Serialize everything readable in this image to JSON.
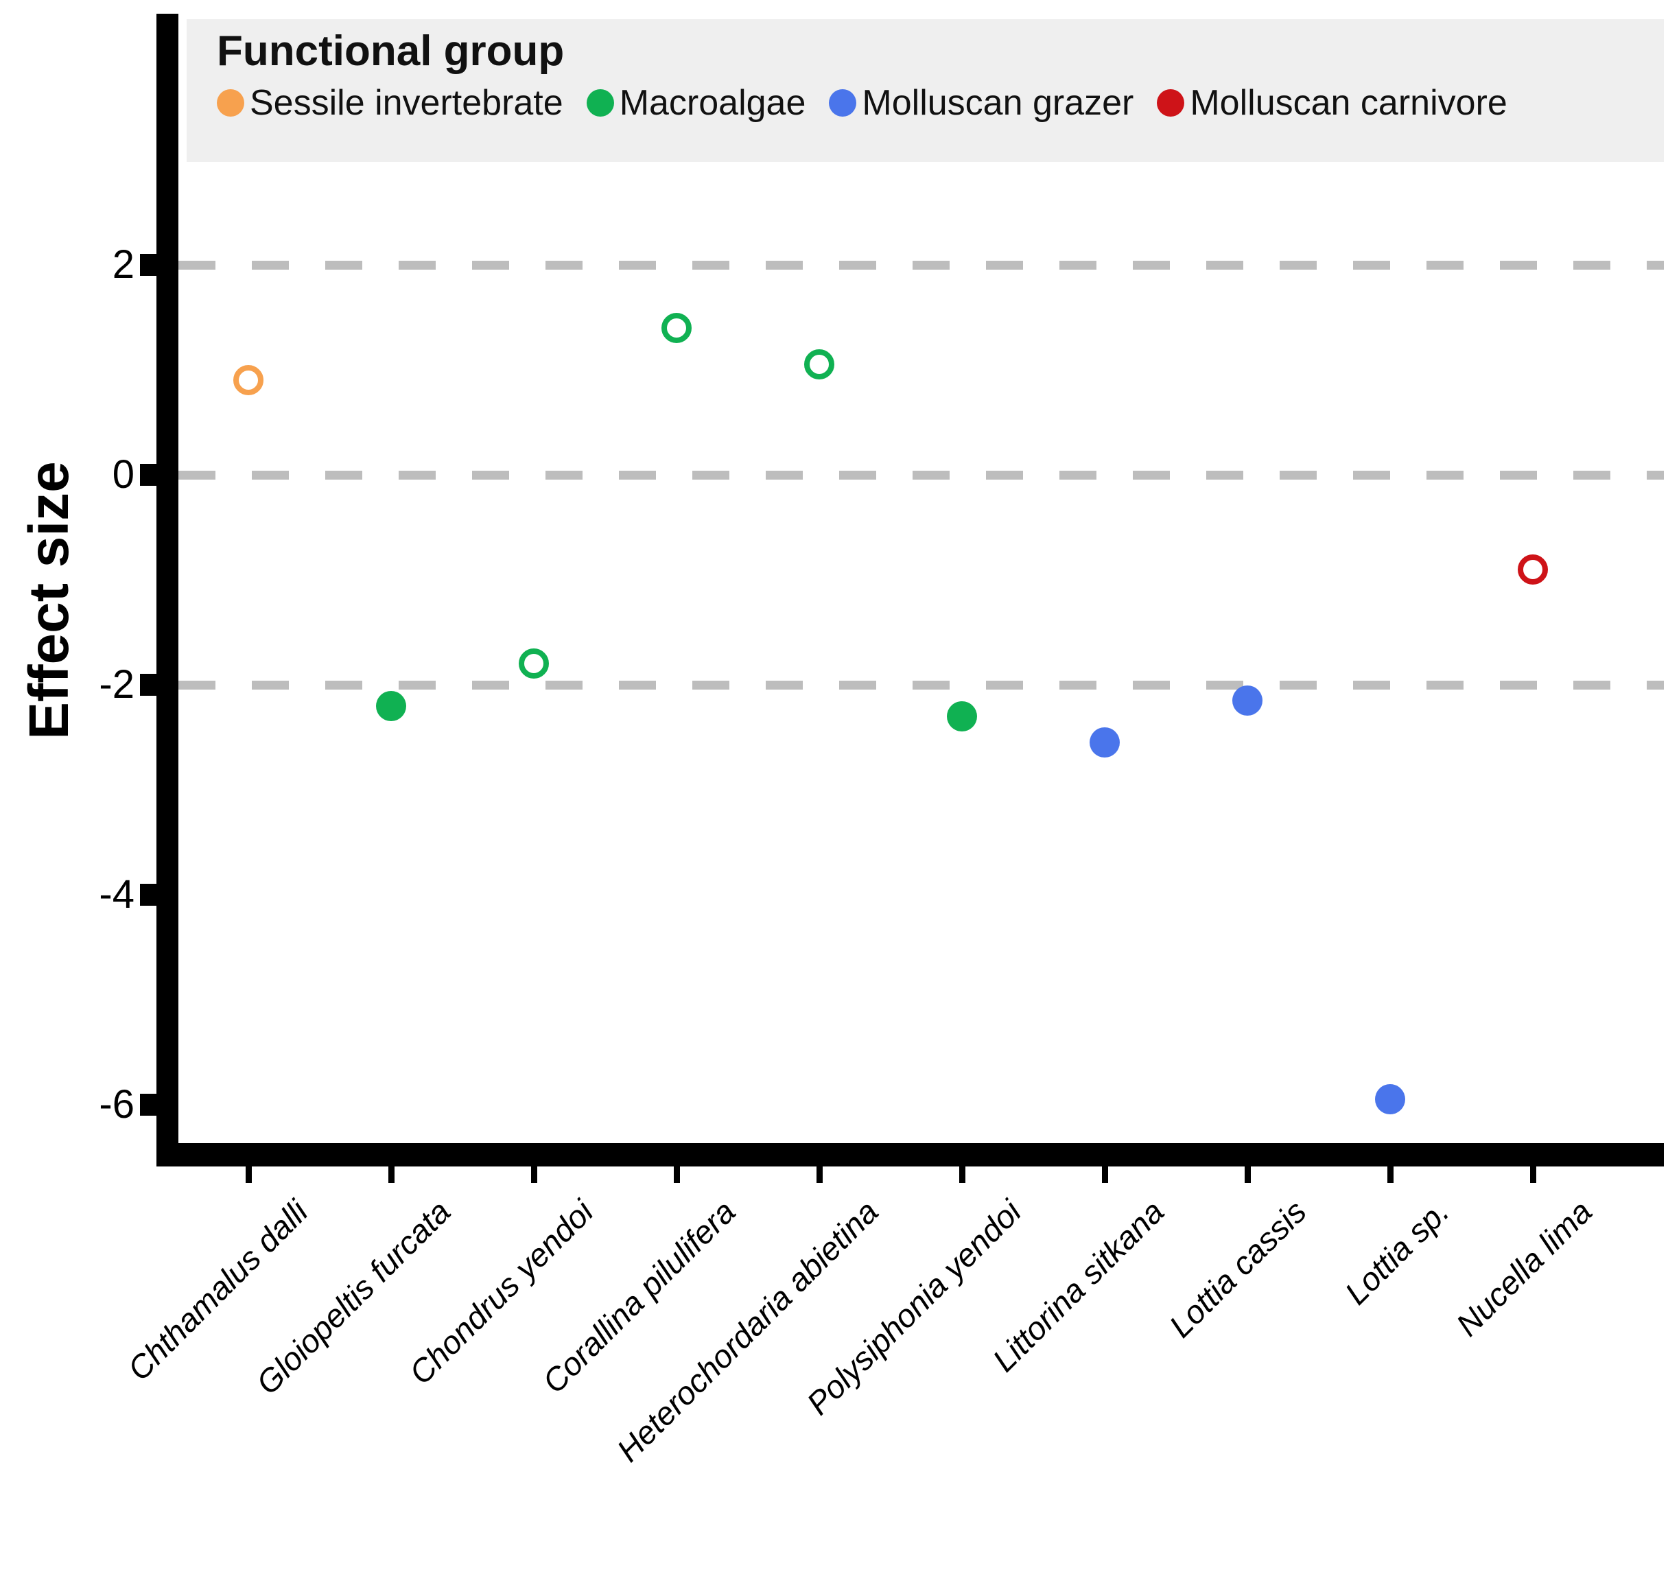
{
  "figure": {
    "background": "#FFFFFF",
    "y_axis_title": "Effect size"
  },
  "legend": {
    "title": "Functional group",
    "background": "#EFEFEF",
    "entries": [
      {
        "label": "Sessile invertebrate",
        "color": "#F7A14E"
      },
      {
        "label": "Macroalgae",
        "color": "#10B152"
      },
      {
        "label": "Molluscan grazer",
        "color": "#4A75EB"
      },
      {
        "label": "Molluscan carnivore",
        "color": "#CE1318"
      }
    ]
  },
  "chart_data": {
    "type": "scatter",
    "title": "",
    "xlabel": "",
    "ylabel": "Effect size",
    "ylim": [
      -6.5,
      3.0
    ],
    "grid": "horizontal-dashed",
    "grid_color": "#BDBDBD",
    "axis_color": "#000000",
    "legend_position": "top",
    "y_ticks": [
      {
        "value": 2,
        "label": "2"
      },
      {
        "value": 0,
        "label": "0"
      },
      {
        "value": -2,
        "label": "-2"
      },
      {
        "value": -4,
        "label": "-4"
      },
      {
        "value": -6,
        "label": "-6"
      }
    ],
    "gridline_values": [
      2,
      0,
      -2
    ],
    "categories": [
      "Chthamalus dalli",
      "Gloiopeltis furcata",
      "Chondrus yendoi",
      "Corallina pilulifera",
      "Heterochordaria abietina",
      "Polysiphonia yendoi",
      "Littorina sitkana",
      "Lottia cassis",
      "Lottia sp.",
      "Nucella lima"
    ],
    "points": [
      {
        "species": "Chthamalus dalli",
        "group": "Sessile invertebrate",
        "effect_size": 0.9,
        "marker": "open"
      },
      {
        "species": "Gloiopeltis furcata",
        "group": "Macroalgae",
        "effect_size": -2.2,
        "marker": "filled"
      },
      {
        "species": "Chondrus yendoi",
        "group": "Macroalgae",
        "effect_size": -1.8,
        "marker": "open"
      },
      {
        "species": "Corallina pilulifera",
        "group": "Macroalgae",
        "effect_size": 1.4,
        "marker": "open"
      },
      {
        "species": "Heterochordaria abietina",
        "group": "Macroalgae",
        "effect_size": 1.05,
        "marker": "open"
      },
      {
        "species": "Polysiphonia yendoi",
        "group": "Macroalgae",
        "effect_size": -2.3,
        "marker": "filled"
      },
      {
        "species": "Littorina sitkana",
        "group": "Molluscan grazer",
        "effect_size": -2.55,
        "marker": "filled"
      },
      {
        "species": "Lottia cassis",
        "group": "Molluscan grazer",
        "effect_size": -2.15,
        "marker": "filled"
      },
      {
        "species": "Lottia sp.",
        "group": "Molluscan grazer",
        "effect_size": -5.95,
        "marker": "filled"
      },
      {
        "species": "Nucella lima",
        "group": "Molluscan carnivore",
        "effect_size": -0.9,
        "marker": "open"
      }
    ]
  }
}
